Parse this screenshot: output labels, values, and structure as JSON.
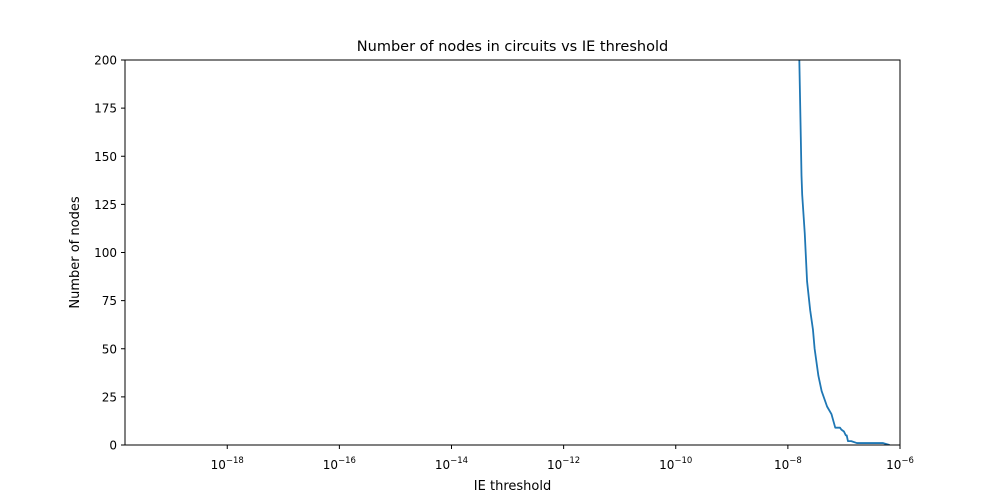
{
  "chart_data": {
    "type": "line",
    "title": "Number of nodes in circuits vs IE threshold",
    "xlabel": "IE threshold",
    "ylabel": "Number of nodes",
    "xscale": "log",
    "xlim": [
      1.5e-20,
      1e-06
    ],
    "ylim": [
      0,
      200
    ],
    "x_ticks": [
      {
        "base": "10",
        "exp": "−18",
        "value": 1e-18
      },
      {
        "base": "10",
        "exp": "−16",
        "value": 1e-16
      },
      {
        "base": "10",
        "exp": "−14",
        "value": 1e-14
      },
      {
        "base": "10",
        "exp": "−12",
        "value": 1e-12
      },
      {
        "base": "10",
        "exp": "−10",
        "value": 1e-10
      },
      {
        "base": "10",
        "exp": "−8",
        "value": 1e-08
      },
      {
        "base": "10",
        "exp": "−6",
        "value": 1e-06
      }
    ],
    "y_ticks": [
      0,
      25,
      50,
      75,
      100,
      125,
      150,
      175,
      200
    ],
    "grid": false,
    "series": [
      {
        "color": "#1f77b4",
        "x": [
          1.6e-08,
          1.7e-08,
          1.75e-08,
          1.8e-08,
          2e-08,
          2.2e-08,
          2.5e-08,
          2.8e-08,
          3e-08,
          3.5e-08,
          4e-08,
          5e-08,
          6e-08,
          7e-08,
          7.5e-08,
          8.5e-08,
          9e-08,
          1e-07,
          1.08e-07,
          1.12e-07,
          1.18e-07,
          1.25e-07,
          1.35e-07,
          1.7e-07,
          1.8e-07,
          2.2e-07,
          3e-07,
          5e-07,
          6.5e-07
        ],
        "y": [
          200,
          160,
          140,
          130,
          110,
          85,
          70,
          60,
          50,
          36,
          28,
          20,
          16,
          9,
          9,
          9,
          8,
          7,
          5,
          5,
          2,
          2,
          2,
          1,
          1,
          1,
          1,
          1,
          0
        ]
      }
    ]
  }
}
